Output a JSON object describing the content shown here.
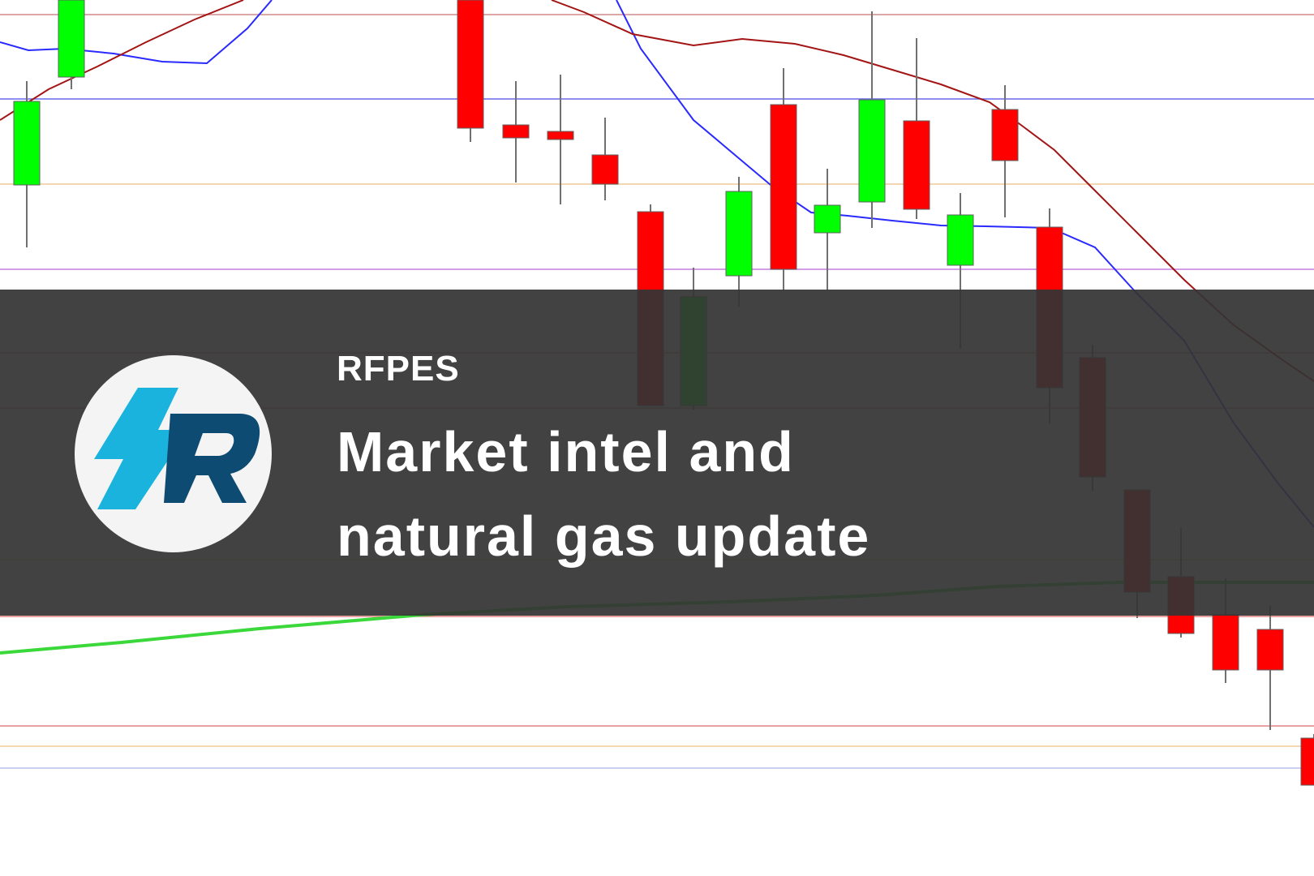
{
  "banner": {
    "brand": "RFPES",
    "headline_line1": "Market intel and",
    "headline_line2": "natural gas update"
  },
  "logo": {
    "icon": "lightning-r-logo",
    "colors": {
      "bolt": "#1ab3dd",
      "letter": "#0e4b73",
      "circle": "#f4f4f4"
    }
  },
  "chart_data": {
    "type": "candlestick",
    "colors": {
      "up": "#00ff00",
      "down": "#ff0000",
      "fast_ma": "#2a2aff",
      "slow_ma": "#a31515",
      "long_ma": "#3ad83a"
    }
  }
}
